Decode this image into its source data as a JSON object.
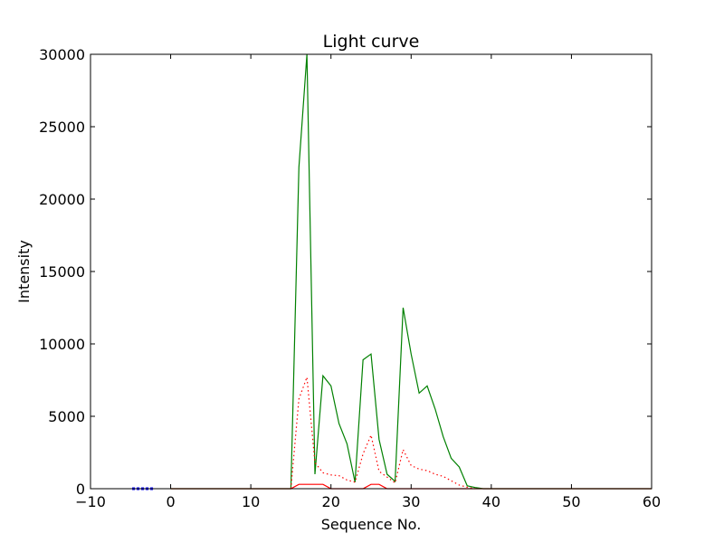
{
  "chart_data": {
    "type": "line",
    "title": "Light curve",
    "xlabel": "Sequence No.",
    "ylabel": "Intensity",
    "xlim": [
      -10,
      60
    ],
    "ylim": [
      0,
      30000
    ],
    "xticks": [
      -10,
      0,
      10,
      20,
      30,
      40,
      50,
      60
    ],
    "yticks": [
      0,
      5000,
      10000,
      15000,
      20000,
      25000,
      30000
    ],
    "grid": false,
    "series": [
      {
        "color": "#008000",
        "style": "solid",
        "x": [
          0,
          1,
          2,
          3,
          4,
          5,
          6,
          7,
          8,
          9,
          10,
          11,
          12,
          13,
          14,
          15,
          16,
          17,
          18,
          19,
          20,
          21,
          22,
          23,
          24,
          25,
          26,
          27,
          28,
          29,
          30,
          31,
          32,
          33,
          34,
          35,
          36,
          37,
          38,
          39,
          40,
          41,
          42,
          43,
          44,
          45,
          46,
          47,
          48,
          49,
          50,
          51,
          52,
          53,
          54,
          55,
          56,
          57,
          58,
          59,
          60
        ],
        "y": [
          0,
          0,
          0,
          0,
          0,
          0,
          0,
          0,
          0,
          0,
          0,
          0,
          0,
          0,
          0,
          0,
          22200,
          30000,
          1000,
          7800,
          7100,
          4500,
          3100,
          450,
          8900,
          9300,
          3400,
          1000,
          500,
          12500,
          9300,
          6600,
          7100,
          5500,
          3600,
          2100,
          1500,
          200,
          80,
          0,
          0,
          0,
          0,
          0,
          0,
          0,
          0,
          0,
          0,
          0,
          0,
          0,
          0,
          0,
          0,
          0,
          0,
          0,
          0,
          0,
          0
        ]
      },
      {
        "color": "#ff0000",
        "style": "dotted",
        "x": [
          15,
          16,
          17,
          18,
          19,
          20,
          21,
          22,
          23,
          24,
          25,
          26,
          27,
          28,
          29,
          30,
          31,
          32,
          33,
          34,
          35,
          36,
          37,
          38
        ],
        "y": [
          0,
          6200,
          7700,
          1800,
          1100,
          950,
          900,
          600,
          450,
          2400,
          3700,
          1200,
          800,
          400,
          2700,
          1600,
          1350,
          1250,
          1000,
          850,
          550,
          250,
          100,
          0
        ]
      },
      {
        "color": "#ff0000",
        "style": "solid",
        "x": [
          0,
          15,
          16,
          17,
          18,
          19,
          20,
          23,
          24,
          25,
          26,
          27,
          28,
          60
        ],
        "y": [
          0,
          0,
          300,
          300,
          300,
          300,
          0,
          0,
          0,
          300,
          300,
          0,
          0,
          0
        ]
      },
      {
        "color": "#0000ff",
        "style": "dotted-thick",
        "x": [
          -4.8,
          -4,
          -3,
          -2.2
        ],
        "y": [
          0,
          0,
          0,
          0
        ]
      }
    ]
  }
}
